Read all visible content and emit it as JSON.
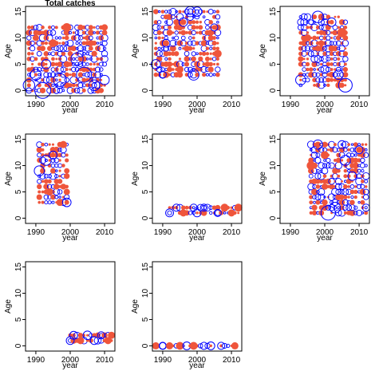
{
  "figure": {
    "title": "Total catches"
  },
  "chart_data": [
    {
      "type": "scatter",
      "title": "Total catches",
      "xlabel": "year",
      "ylabel": "Age",
      "xticks": [
        1990,
        2000,
        2010
      ],
      "yticks": [
        0,
        5,
        10,
        15
      ],
      "xlim": [
        1987,
        2013
      ],
      "ylim": [
        -1,
        16
      ],
      "colors": {
        "positive": "#ef553b",
        "negative": "#0000ff"
      },
      "year_range": [
        1988,
        2012
      ],
      "age_range": [
        0,
        15
      ],
      "series": [
        {
          "name": "",
          "x": [
            1988,
            1990,
            1992,
            1993,
            1995,
            1997,
            1999,
            2002,
            2004,
            2007,
            2010
          ],
          "y": [
            1,
            3,
            0,
            5,
            9,
            2,
            12,
            6,
            3,
            1,
            2
          ],
          "size": [
            -1.6,
            -1.5,
            -2.2,
            -1.3,
            1.1,
            -1.8,
            1.2,
            -1.7,
            -2.1,
            -1.5,
            -1.3
          ]
        }
      ]
    },
    {
      "type": "scatter",
      "xlabel": "year",
      "ylabel": "Age",
      "xticks": [
        1990,
        2000,
        2010
      ],
      "yticks": [
        0,
        5,
        10,
        15
      ],
      "xlim": [
        1987,
        2013
      ],
      "ylim": [
        -1,
        16
      ],
      "colors": {
        "positive": "#ef553b",
        "negative": "#0000ff"
      },
      "x": [
        1988,
        1990,
        1991,
        1995,
        1996,
        1998,
        1999,
        2000,
        2005,
        2006
      ],
      "y": [
        5,
        3,
        9,
        4,
        13,
        15,
        3,
        15,
        12,
        7
      ],
      "size": [
        -1.3,
        -1.0,
        -1.1,
        1.0,
        -1.2,
        -1.4,
        -1.5,
        -1.3,
        -1.0,
        1.1
      ]
    },
    {
      "type": "scatter",
      "xlabel": "year",
      "ylabel": "Age",
      "xticks": [
        1990,
        2000,
        2010
      ],
      "yticks": [
        0,
        5,
        10,
        15
      ],
      "xlim": [
        1987,
        2013
      ],
      "ylim": [
        -1,
        16
      ],
      "colors": {
        "positive": "#ef553b",
        "negative": "#0000ff"
      },
      "x": [
        1993,
        1995,
        1998,
        2000,
        2002,
        2004,
        2005,
        2006
      ],
      "y": [
        2,
        10,
        14,
        4,
        13,
        3,
        11,
        1
      ],
      "size": [
        -1.4,
        1.0,
        -1.6,
        -1.1,
        -1.2,
        -1.3,
        1.3,
        -1.9
      ]
    },
    {
      "type": "scatter",
      "xlabel": "year",
      "ylabel": "Age",
      "xticks": [
        1990,
        2000,
        2010
      ],
      "yticks": [
        0,
        5,
        10,
        15
      ],
      "xlim": [
        1987,
        2013
      ],
      "ylim": [
        -1,
        16
      ],
      "colors": {
        "positive": "#ef553b",
        "negative": "#0000ff"
      },
      "x": [
        1991,
        1993,
        1994,
        1995,
        1997,
        1998,
        1999
      ],
      "y": [
        9,
        11,
        5,
        12,
        3,
        14,
        3
      ],
      "size": [
        -1.4,
        -1.4,
        1.0,
        -1.1,
        1.0,
        1.0,
        -1.2
      ]
    },
    {
      "type": "scatter",
      "xlabel": "year",
      "ylabel": "Age",
      "xticks": [
        1990,
        2000,
        2010
      ],
      "yticks": [
        0,
        5,
        10,
        15
      ],
      "xlim": [
        1987,
        2013
      ],
      "ylim": [
        -1,
        16
      ],
      "colors": {
        "positive": "#ef553b",
        "negative": "#0000ff"
      },
      "x": [
        1992,
        1994,
        1996,
        1999,
        2000,
        2002,
        2006,
        2008,
        2010,
        2012
      ],
      "y": [
        1,
        2,
        1,
        2,
        1,
        2,
        1,
        2,
        1,
        2
      ],
      "size": [
        -1.1,
        -1.0,
        1.0,
        -1.0,
        -1.1,
        -1.0,
        -1.0,
        1.1,
        1.0,
        1.1
      ]
    },
    {
      "type": "scatter",
      "xlabel": "year",
      "ylabel": "Age",
      "xticks": [
        1990,
        2000,
        2010
      ],
      "yticks": [
        0,
        5,
        10,
        15
      ],
      "xlim": [
        1987,
        2013
      ],
      "ylim": [
        -1,
        16
      ],
      "colors": {
        "positive": "#ef553b",
        "negative": "#0000ff"
      },
      "x": [
        1996,
        1998,
        2000,
        2001,
        2003,
        2005,
        2006,
        2008,
        2010,
        2012
      ],
      "y": [
        10,
        14,
        12,
        1,
        2,
        14,
        11,
        8,
        13,
        2
      ],
      "size": [
        1.2,
        -1.3,
        1.1,
        -2.0,
        -1.5,
        -1.1,
        -1.4,
        -1.2,
        -1.1,
        -1.0
      ]
    },
    {
      "type": "scatter",
      "xlabel": "year",
      "ylabel": "Age",
      "xticks": [
        1990,
        2000,
        2010
      ],
      "yticks": [
        0,
        5,
        10,
        15
      ],
      "xlim": [
        1987,
        2013
      ],
      "ylim": [
        -1,
        16
      ],
      "colors": {
        "positive": "#ef553b",
        "negative": "#0000ff"
      },
      "x": [
        2000,
        2001,
        2003,
        2005,
        2007,
        2009,
        2011,
        2012
      ],
      "y": [
        1,
        2,
        1,
        2,
        1,
        2,
        1,
        2
      ],
      "size": [
        -1.1,
        -1.1,
        1.0,
        -1.2,
        -1.1,
        -1.0,
        1.0,
        1.0
      ]
    },
    {
      "type": "scatter",
      "xlabel": "year",
      "ylabel": "Age",
      "xticks": [
        1990,
        2000,
        2010
      ],
      "yticks": [
        0,
        5,
        10,
        15
      ],
      "xlim": [
        1987,
        2013
      ],
      "ylim": [
        -1,
        16
      ],
      "colors": {
        "positive": "#ef553b",
        "negative": "#0000ff"
      },
      "x": [
        1988,
        1990,
        1992,
        1995,
        1997,
        1999,
        2002,
        2004,
        2007,
        2011
      ],
      "y": [
        0,
        0,
        0,
        0,
        0,
        0,
        0,
        0,
        0,
        0
      ],
      "size": [
        1.0,
        -1.0,
        1.0,
        1.1,
        -1.1,
        1.1,
        -1.0,
        -1.1,
        -1.0,
        1.0
      ]
    }
  ]
}
